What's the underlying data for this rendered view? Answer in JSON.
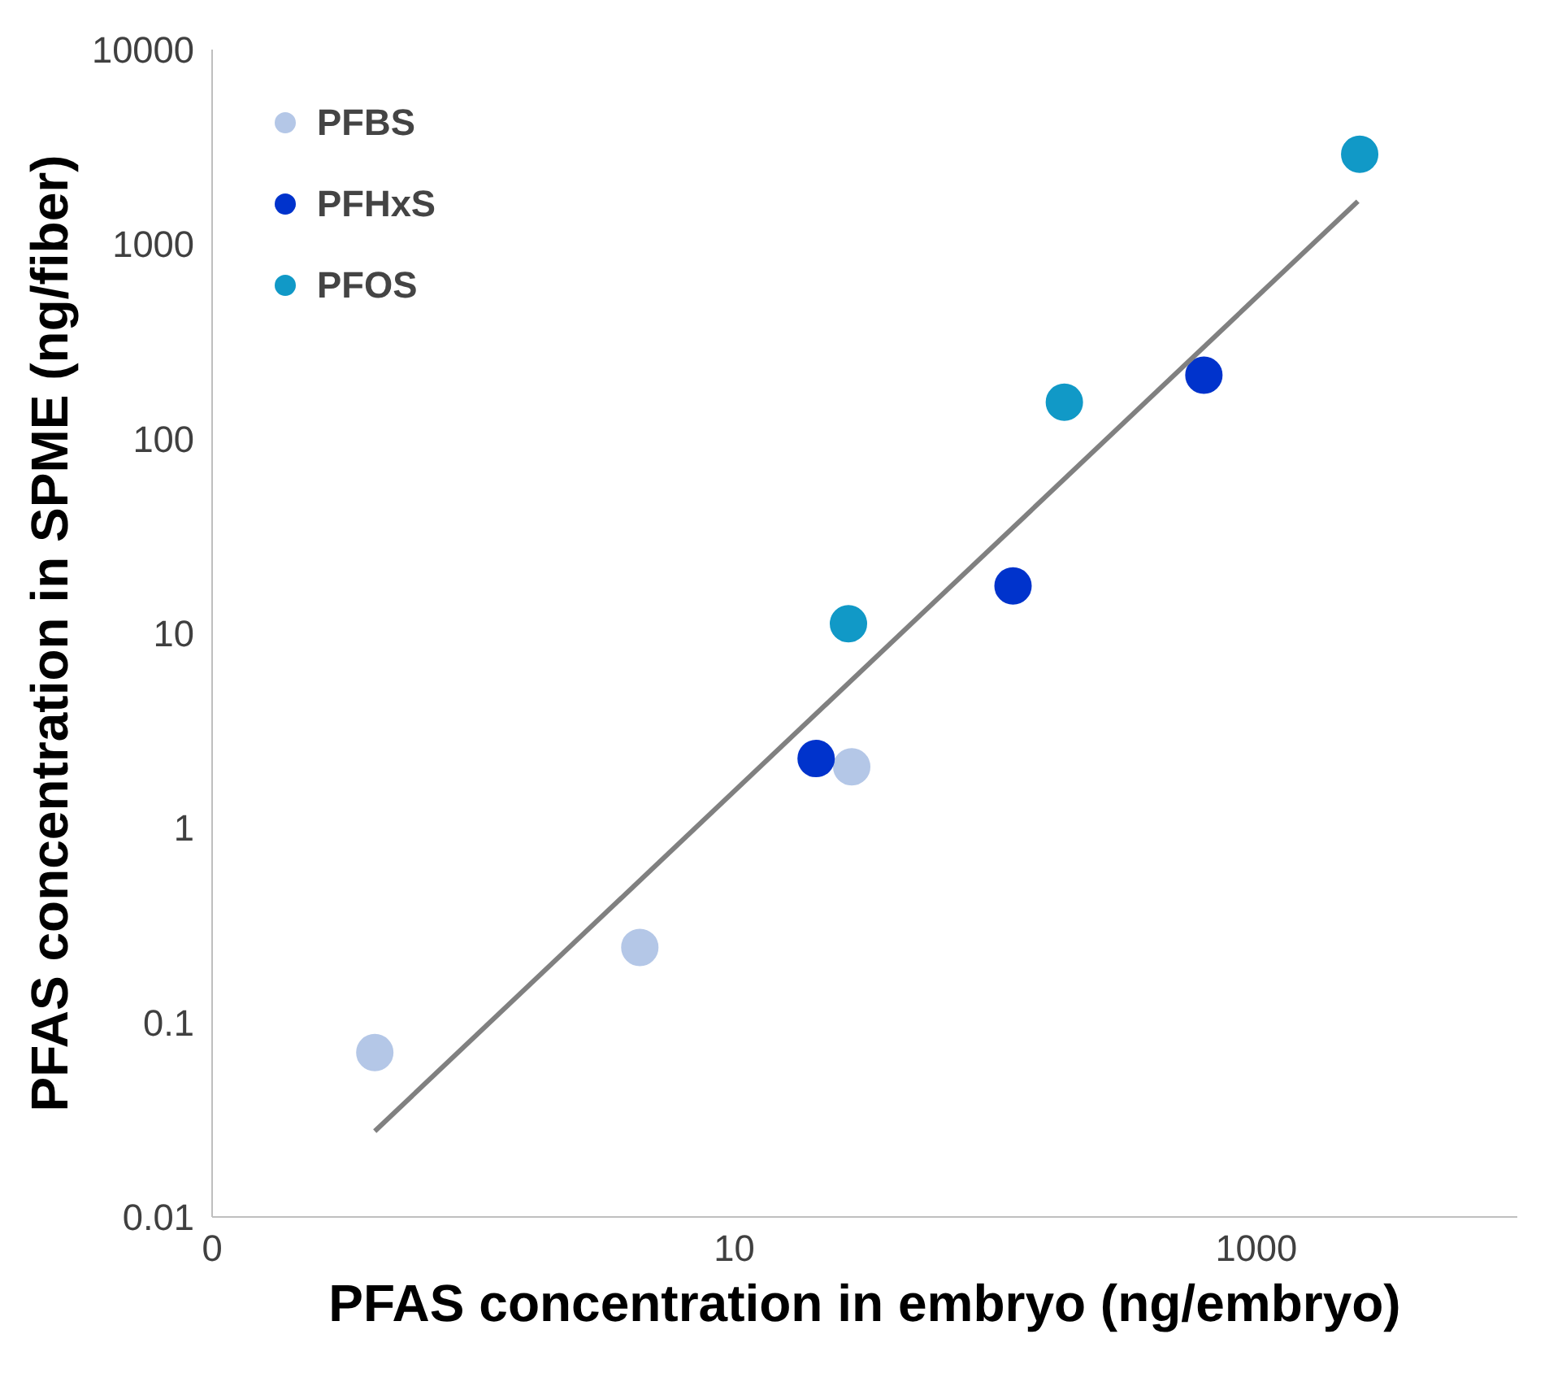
{
  "chart_data": {
    "type": "scatter",
    "xlabel": "PFAS concentration in embryo (ng/embryo)",
    "ylabel": "PFAS concentration in SPME (ng/fiber)",
    "log": "xy",
    "xlim": [
      0.1,
      10000
    ],
    "ylim": [
      0.01,
      10000
    ],
    "xticks": [
      {
        "value": 0.1,
        "label": "0"
      },
      10,
      1000
    ],
    "yticks": [
      0.01,
      0.1,
      1,
      10,
      100,
      1000,
      10000
    ],
    "grid": false,
    "legend": "top left",
    "series": [
      {
        "name": "PFBS",
        "marker": "circle",
        "color": "#b4c7e7",
        "x": [
          0.42,
          4.35,
          28.2
        ],
        "values": [
          0.07,
          0.243,
          2.06
        ]
      },
      {
        "name": "PFHxS",
        "marker": "circle",
        "color": "#0033cc",
        "x": [
          20.6,
          117,
          630
        ],
        "values": [
          2.27,
          17.5,
          212
        ]
      },
      {
        "name": "PFOS",
        "marker": "circle",
        "color": "#1199c7",
        "x": [
          27.4,
          184,
          2490
        ],
        "values": [
          11.2,
          154,
          2900
        ]
      },
      {
        "type": "line",
        "marker": "none",
        "color": "#808080",
        "x": [
          0.42,
          2450
        ],
        "values": [
          0.0276,
          1660
        ]
      }
    ]
  }
}
